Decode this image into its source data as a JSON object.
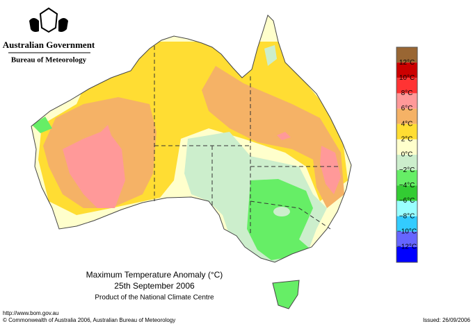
{
  "header": {
    "agency": "Australian Government",
    "bureau": "Bureau of Meteorology"
  },
  "map": {
    "title": "Maximum Temperature Anomaly (°C)",
    "date": "25th September 2006",
    "credit": "Product of the National Climate Centre"
  },
  "legend": {
    "colors": [
      "#996633",
      "#cc0000",
      "#ff3333",
      "#ff9999",
      "#f5b266",
      "#ffdd33",
      "#ffffcc",
      "#cceecc",
      "#66ee66",
      "#33cc33",
      "#99ffff",
      "#33ccff",
      "#6666ff",
      "#0000ff"
    ],
    "labels": [
      "12°C",
      "10°C",
      "8°C",
      "6°C",
      "4°C",
      "2°C",
      "0°C",
      "−2°C",
      "−4°C",
      "−6°C",
      "−8°C",
      "−10°C",
      "−12°C"
    ]
  },
  "footer": {
    "url": "http://www.bom.gov.au",
    "copyright": "© Commonwealth of Australia 2006, Australian Bureau of Meteorology",
    "issued": "Issued: 26/09/2006"
  }
}
